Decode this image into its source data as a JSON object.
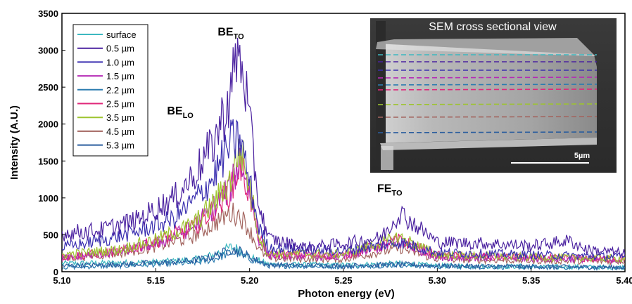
{
  "chart_data": {
    "type": "line",
    "title": "",
    "xlabel": "Photon energy (eV)",
    "ylabel": "Intensity (A.U.)",
    "xlim": [
      5.1,
      5.4
    ],
    "ylim": [
      0,
      3500
    ],
    "xticks": [
      5.1,
      5.15,
      5.2,
      5.25,
      5.3,
      5.35,
      5.4
    ],
    "xtick_labels": [
      "5.10",
      "5.15",
      "5.20",
      "5.25",
      "5.30",
      "5.35",
      "5.40"
    ],
    "yticks": [
      0,
      500,
      1000,
      1500,
      2000,
      2500,
      3000,
      3500
    ],
    "ytick_labels": [
      "0",
      "500",
      "1000",
      "1500",
      "2000",
      "2500",
      "3000",
      "3500"
    ],
    "grid": false,
    "legend_position": "top-left",
    "series": [
      {
        "name": "surface",
        "color": "#3cb8c0",
        "points": [
          [
            5.1,
            110
          ],
          [
            5.13,
            120
          ],
          [
            5.15,
            130
          ],
          [
            5.17,
            160
          ],
          [
            5.18,
            220
          ],
          [
            5.19,
            330
          ],
          [
            5.195,
            300
          ],
          [
            5.2,
            200
          ],
          [
            5.21,
            100
          ],
          [
            5.25,
            90
          ],
          [
            5.28,
            110
          ],
          [
            5.3,
            80
          ],
          [
            5.35,
            70
          ],
          [
            5.4,
            60
          ]
        ]
      },
      {
        "name": "0.5 µm",
        "color": "#4b22a0",
        "points": [
          [
            5.1,
            520
          ],
          [
            5.12,
            560
          ],
          [
            5.14,
            700
          ],
          [
            5.16,
            1000
          ],
          [
            5.17,
            1300
          ],
          [
            5.18,
            1700
          ],
          [
            5.19,
            2400
          ],
          [
            5.193,
            2950
          ],
          [
            5.197,
            2700
          ],
          [
            5.2,
            2000
          ],
          [
            5.205,
            900
          ],
          [
            5.21,
            450
          ],
          [
            5.23,
            330
          ],
          [
            5.25,
            380
          ],
          [
            5.27,
            460
          ],
          [
            5.28,
            800
          ],
          [
            5.29,
            600
          ],
          [
            5.3,
            400
          ],
          [
            5.33,
            380
          ],
          [
            5.35,
            350
          ],
          [
            5.37,
            420
          ],
          [
            5.38,
            300
          ],
          [
            5.4,
            250
          ]
        ]
      },
      {
        "name": "1.0 µm",
        "color": "#3a2fb0",
        "points": [
          [
            5.1,
            330
          ],
          [
            5.12,
            420
          ],
          [
            5.14,
            540
          ],
          [
            5.16,
            720
          ],
          [
            5.17,
            950
          ],
          [
            5.18,
            1250
          ],
          [
            5.19,
            1750
          ],
          [
            5.195,
            1800
          ],
          [
            5.2,
            1200
          ],
          [
            5.205,
            600
          ],
          [
            5.21,
            330
          ],
          [
            5.25,
            280
          ],
          [
            5.28,
            400
          ],
          [
            5.3,
            260
          ],
          [
            5.35,
            230
          ],
          [
            5.4,
            200
          ]
        ]
      },
      {
        "name": "1.5 µm",
        "color": "#b52ab5",
        "points": [
          [
            5.1,
            180
          ],
          [
            5.13,
            270
          ],
          [
            5.15,
            380
          ],
          [
            5.17,
            600
          ],
          [
            5.18,
            850
          ],
          [
            5.19,
            1150
          ],
          [
            5.195,
            1550
          ],
          [
            5.2,
            1100
          ],
          [
            5.205,
            450
          ],
          [
            5.21,
            230
          ],
          [
            5.25,
            200
          ],
          [
            5.28,
            400
          ],
          [
            5.3,
            200
          ],
          [
            5.35,
            180
          ],
          [
            5.4,
            160
          ]
        ]
      },
      {
        "name": "2.2 µm",
        "color": "#2c7cb0",
        "points": [
          [
            5.1,
            60
          ],
          [
            5.13,
            80
          ],
          [
            5.15,
            100
          ],
          [
            5.17,
            120
          ],
          [
            5.18,
            160
          ],
          [
            5.19,
            260
          ],
          [
            5.195,
            240
          ],
          [
            5.2,
            170
          ],
          [
            5.21,
            80
          ],
          [
            5.25,
            70
          ],
          [
            5.28,
            90
          ],
          [
            5.3,
            70
          ],
          [
            5.35,
            60
          ],
          [
            5.4,
            50
          ]
        ]
      },
      {
        "name": "2.5 µm",
        "color": "#e0287a",
        "points": [
          [
            5.1,
            200
          ],
          [
            5.13,
            270
          ],
          [
            5.15,
            400
          ],
          [
            5.17,
            600
          ],
          [
            5.18,
            820
          ],
          [
            5.19,
            1100
          ],
          [
            5.195,
            1450
          ],
          [
            5.2,
            1050
          ],
          [
            5.205,
            450
          ],
          [
            5.21,
            230
          ],
          [
            5.25,
            220
          ],
          [
            5.28,
            430
          ],
          [
            5.3,
            220
          ],
          [
            5.35,
            190
          ],
          [
            5.4,
            170
          ]
        ]
      },
      {
        "name": "3.5 µm",
        "color": "#9dc42e",
        "points": [
          [
            5.1,
            230
          ],
          [
            5.13,
            300
          ],
          [
            5.15,
            430
          ],
          [
            5.17,
            640
          ],
          [
            5.18,
            900
          ],
          [
            5.19,
            1250
          ],
          [
            5.195,
            1700
          ],
          [
            5.2,
            1150
          ],
          [
            5.205,
            480
          ],
          [
            5.21,
            250
          ],
          [
            5.25,
            240
          ],
          [
            5.28,
            470
          ],
          [
            5.3,
            230
          ],
          [
            5.35,
            200
          ],
          [
            5.4,
            180
          ]
        ]
      },
      {
        "name": "4.5 µm",
        "color": "#a3655f",
        "points": [
          [
            5.1,
            180
          ],
          [
            5.13,
            250
          ],
          [
            5.15,
            340
          ],
          [
            5.17,
            480
          ],
          [
            5.18,
            640
          ],
          [
            5.19,
            800
          ],
          [
            5.195,
            760
          ],
          [
            5.2,
            560
          ],
          [
            5.205,
            300
          ],
          [
            5.21,
            180
          ],
          [
            5.25,
            170
          ],
          [
            5.28,
            320
          ],
          [
            5.3,
            170
          ],
          [
            5.35,
            150
          ],
          [
            5.4,
            140
          ]
        ]
      },
      {
        "name": "5.3 µm",
        "color": "#2a5d9e",
        "points": [
          [
            5.1,
            80
          ],
          [
            5.13,
            100
          ],
          [
            5.15,
            120
          ],
          [
            5.17,
            150
          ],
          [
            5.18,
            200
          ],
          [
            5.19,
            300
          ],
          [
            5.195,
            280
          ],
          [
            5.2,
            200
          ],
          [
            5.21,
            90
          ],
          [
            5.25,
            80
          ],
          [
            5.28,
            100
          ],
          [
            5.3,
            80
          ],
          [
            5.35,
            70
          ],
          [
            5.4,
            60
          ]
        ]
      }
    ],
    "annotations": [
      {
        "text": "BE",
        "sub": "TO",
        "x": 5.183,
        "y": 3200
      },
      {
        "text": "BE",
        "sub": "LO",
        "x": 5.156,
        "y": 2130
      },
      {
        "text": "FE",
        "sub": "TO",
        "x": 5.268,
        "y": 1080
      }
    ],
    "inset": {
      "title": "SEM cross sectional view",
      "scale_bar_label": "5µm"
    }
  }
}
